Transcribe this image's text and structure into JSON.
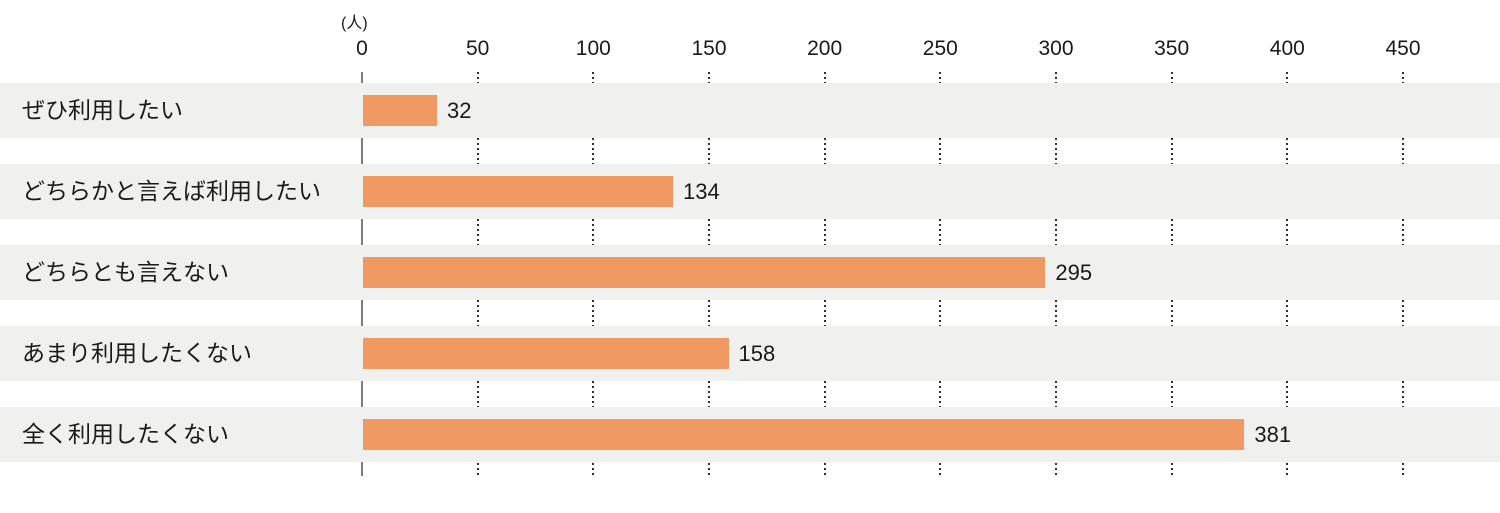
{
  "chart_data": {
    "type": "bar",
    "orientation": "horizontal",
    "title": "",
    "unit_label": "(人)",
    "categories": [
      "ぜひ利用したい",
      "どちらかと言えば利用したい",
      "どちらとも言えない",
      "あまり利用したくない",
      "全く利用したくない"
    ],
    "values": [
      32,
      134,
      295,
      158,
      381
    ],
    "x_ticks": [
      0,
      50,
      100,
      150,
      200,
      250,
      300,
      350,
      400,
      450
    ],
    "xlim": [
      0,
      450
    ],
    "grid": "dotted-vertical-in-row-gaps",
    "legend": "none",
    "colors": {
      "bar": "#ef9a62",
      "row_stripe": "#f0f0ef",
      "axis_line": "#7d7d7d",
      "grid_dots": "#2e2e2e",
      "text": "#1a1a1a",
      "background": "#ffffff"
    }
  }
}
